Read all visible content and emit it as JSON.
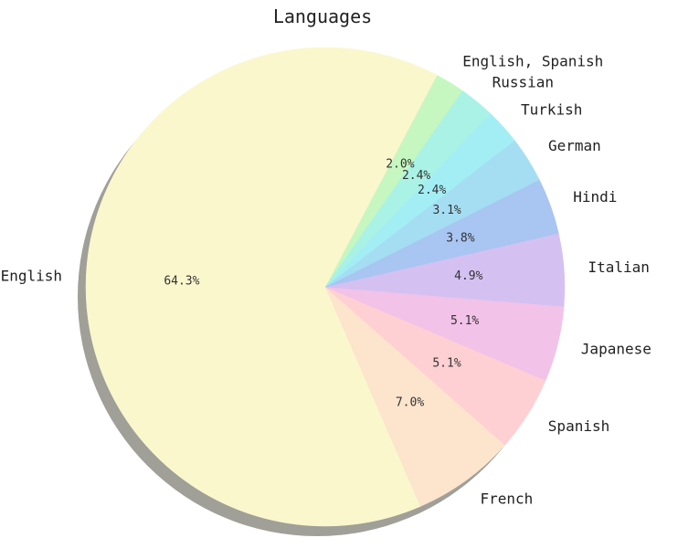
{
  "chart_data": {
    "type": "pie",
    "title": "Languages",
    "slices": [
      {
        "label": "English, Spanish",
        "value": 2.0,
        "pct_label": "2.0%",
        "color": "#c6f7c0"
      },
      {
        "label": "English",
        "value": 64.3,
        "pct_label": "64.3%",
        "color": "#faf7cd"
      },
      {
        "label": "French",
        "value": 7.0,
        "pct_label": "7.0%",
        "color": "#fce4cd"
      },
      {
        "label": "Spanish",
        "value": 5.1,
        "pct_label": "5.1%",
        "color": "#ffd0d3"
      },
      {
        "label": "Japanese",
        "value": 5.1,
        "pct_label": "5.1%",
        "color": "#f2c2e8"
      },
      {
        "label": "Italian",
        "value": 4.9,
        "pct_label": "4.9%",
        "color": "#d4c1f2"
      },
      {
        "label": "Hindi",
        "value": 3.8,
        "pct_label": "3.8%",
        "color": "#a9c5f2"
      },
      {
        "label": "German",
        "value": 3.1,
        "pct_label": "3.1%",
        "color": "#a5def2"
      },
      {
        "label": "Turkish",
        "value": 2.4,
        "pct_label": "2.4%",
        "color": "#a3eef5"
      },
      {
        "label": "Russian",
        "value": 2.4,
        "pct_label": "2.4%",
        "color": "#aaf2e6"
      }
    ],
    "start_angle_deg": 55,
    "direction": "counterclockwise",
    "shadow": true
  }
}
